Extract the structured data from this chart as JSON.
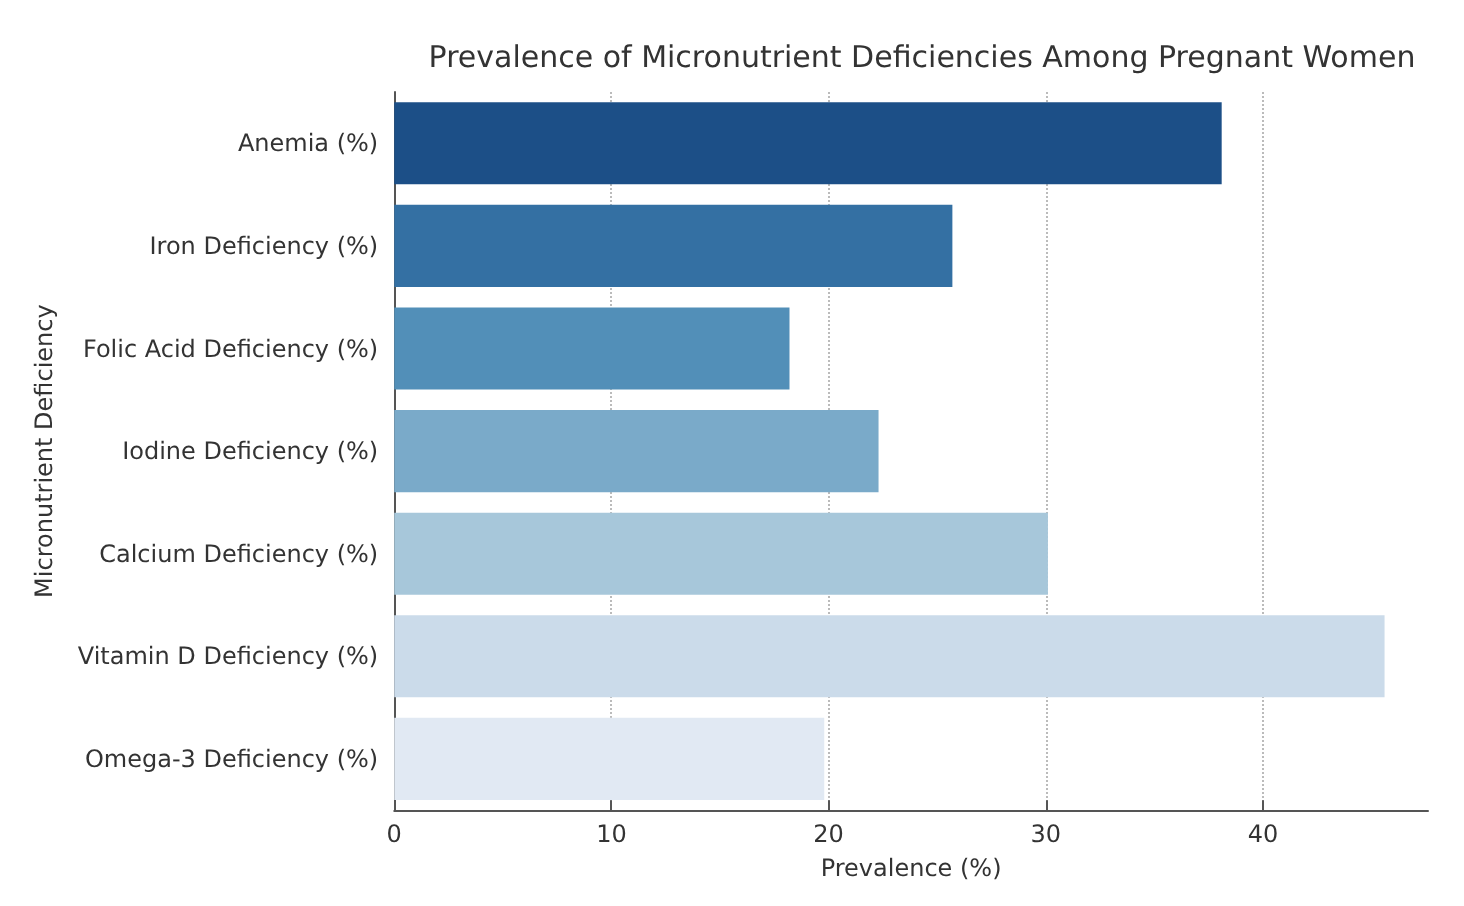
{
  "chart_data": {
    "type": "bar",
    "orientation": "horizontal",
    "title": "Prevalence of Micronutrient Deficiencies Among Pregnant Women",
    "xlabel": "Prevalence (%)",
    "ylabel": "Micronutrient Deficiency",
    "categories": [
      "Anemia (%)",
      "Iron Deficiency (%)",
      "Folic Acid Deficiency (%)",
      "Iodine Deficiency (%)",
      "Calcium Deficiency (%)",
      "Vitamin D Deficiency (%)",
      "Omega-3 Deficiency (%)"
    ],
    "values": [
      38.1,
      25.7,
      18.2,
      22.3,
      30.1,
      45.6,
      19.8
    ],
    "colors": [
      "#1c4f87",
      "#3470a3",
      "#528fb8",
      "#7aaac9",
      "#a7c7da",
      "#cbdbea",
      "#e1e9f3"
    ],
    "xlim": [
      0,
      47.6
    ],
    "xticks": [
      0,
      10,
      20,
      30,
      40
    ],
    "grid": "x"
  }
}
